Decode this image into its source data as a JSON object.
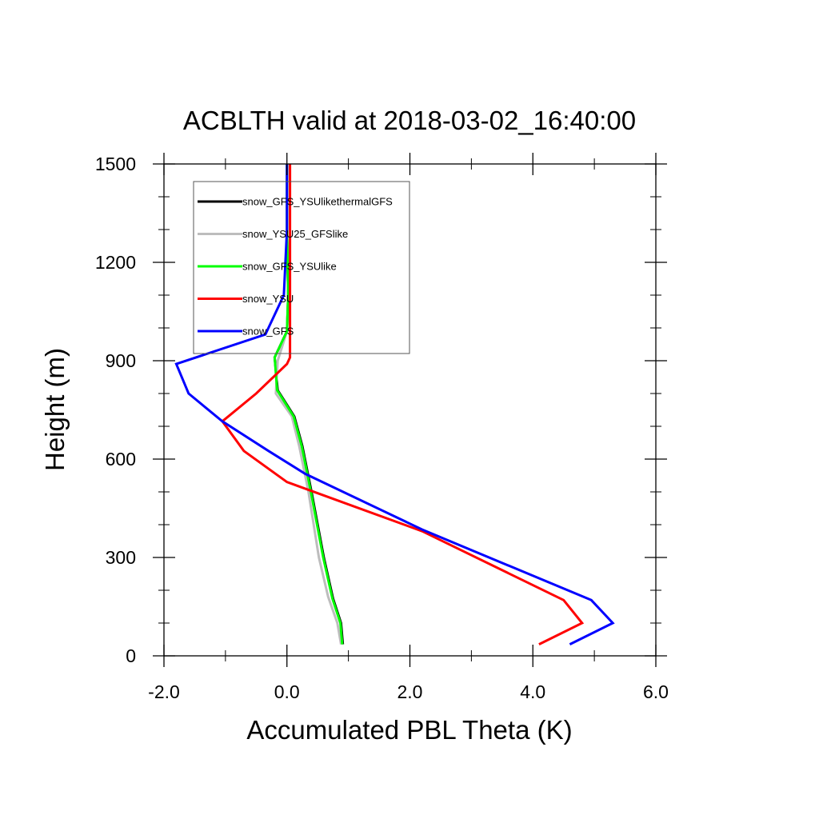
{
  "chart_data": {
    "type": "line",
    "title": "ACBLTH valid at 2018-03-02_16:40:00",
    "xlabel": "Accumulated PBL Theta (K)",
    "ylabel": "Height (m)",
    "xlim": [
      -2.0,
      6.0
    ],
    "ylim": [
      0,
      1500
    ],
    "x_ticks": [
      -2.0,
      0.0,
      2.0,
      4.0,
      6.0
    ],
    "x_tick_labels": [
      "-2.0",
      "0.0",
      "2.0",
      "4.0",
      "6.0"
    ],
    "y_ticks": [
      0,
      300,
      600,
      900,
      1200,
      1500
    ],
    "y_tick_labels": [
      "0",
      "300",
      "600",
      "900",
      "1200",
      "1500"
    ],
    "x_minor_ticks": [
      -1.0,
      1.0,
      3.0,
      5.0
    ],
    "y_minor_ticks": [
      100,
      200,
      400,
      500,
      700,
      800,
      1000,
      1100,
      1300,
      1400
    ],
    "grid": false,
    "legend_position": "top-left",
    "series": [
      {
        "name": "snow_GFS_YSUlikethermalGFS",
        "color": "#000000",
        "points": [
          [
            0.91,
            35
          ],
          [
            0.88,
            100
          ],
          [
            0.75,
            175
          ],
          [
            0.6,
            300
          ],
          [
            0.4,
            500
          ],
          [
            0.25,
            640
          ],
          [
            0.12,
            730
          ],
          [
            -0.15,
            810
          ],
          [
            -0.2,
            910
          ],
          [
            0.0,
            990
          ],
          [
            0.02,
            1100
          ],
          [
            0.0,
            1300
          ],
          [
            0.0,
            1500
          ]
        ]
      },
      {
        "name": "snow_YSU25_GFSlike",
        "color": "#bdbdbd",
        "points": [
          [
            0.88,
            35
          ],
          [
            0.82,
            100
          ],
          [
            0.67,
            180
          ],
          [
            0.52,
            300
          ],
          [
            0.35,
            500
          ],
          [
            0.2,
            640
          ],
          [
            0.08,
            730
          ],
          [
            -0.18,
            800
          ],
          [
            -0.15,
            900
          ],
          [
            0.0,
            990
          ],
          [
            0.02,
            1100
          ],
          [
            0.0,
            1300
          ],
          [
            0.0,
            1500
          ]
        ]
      },
      {
        "name": "snow_GFS_YSUlike",
        "color": "#00ff00",
        "points": [
          [
            0.9,
            35
          ],
          [
            0.87,
            100
          ],
          [
            0.74,
            175
          ],
          [
            0.59,
            300
          ],
          [
            0.39,
            500
          ],
          [
            0.24,
            640
          ],
          [
            0.11,
            730
          ],
          [
            -0.16,
            810
          ],
          [
            -0.2,
            910
          ],
          [
            0.0,
            990
          ],
          [
            0.02,
            1100
          ],
          [
            0.0,
            1300
          ],
          [
            0.0,
            1500
          ]
        ]
      },
      {
        "name": "snow_YSU",
        "color": "#ff0000",
        "points": [
          [
            4.1,
            35
          ],
          [
            4.8,
            100
          ],
          [
            4.5,
            170
          ],
          [
            2.2,
            380
          ],
          [
            0.0,
            530
          ],
          [
            -0.7,
            625
          ],
          [
            -1.05,
            715
          ],
          [
            -0.5,
            800
          ],
          [
            0.0,
            890
          ],
          [
            0.05,
            910
          ],
          [
            0.05,
            1100
          ],
          [
            0.05,
            1300
          ],
          [
            0.05,
            1500
          ]
        ]
      },
      {
        "name": "snow_GFS",
        "color": "#0000ff",
        "points": [
          [
            4.6,
            35
          ],
          [
            5.3,
            100
          ],
          [
            4.95,
            170
          ],
          [
            2.2,
            385
          ],
          [
            0.3,
            555
          ],
          [
            -0.3,
            625
          ],
          [
            -1.05,
            715
          ],
          [
            -1.6,
            800
          ],
          [
            -1.8,
            890
          ],
          [
            -0.35,
            980
          ],
          [
            -0.05,
            1100
          ],
          [
            0.0,
            1300
          ],
          [
            0.0,
            1500
          ]
        ]
      }
    ]
  }
}
